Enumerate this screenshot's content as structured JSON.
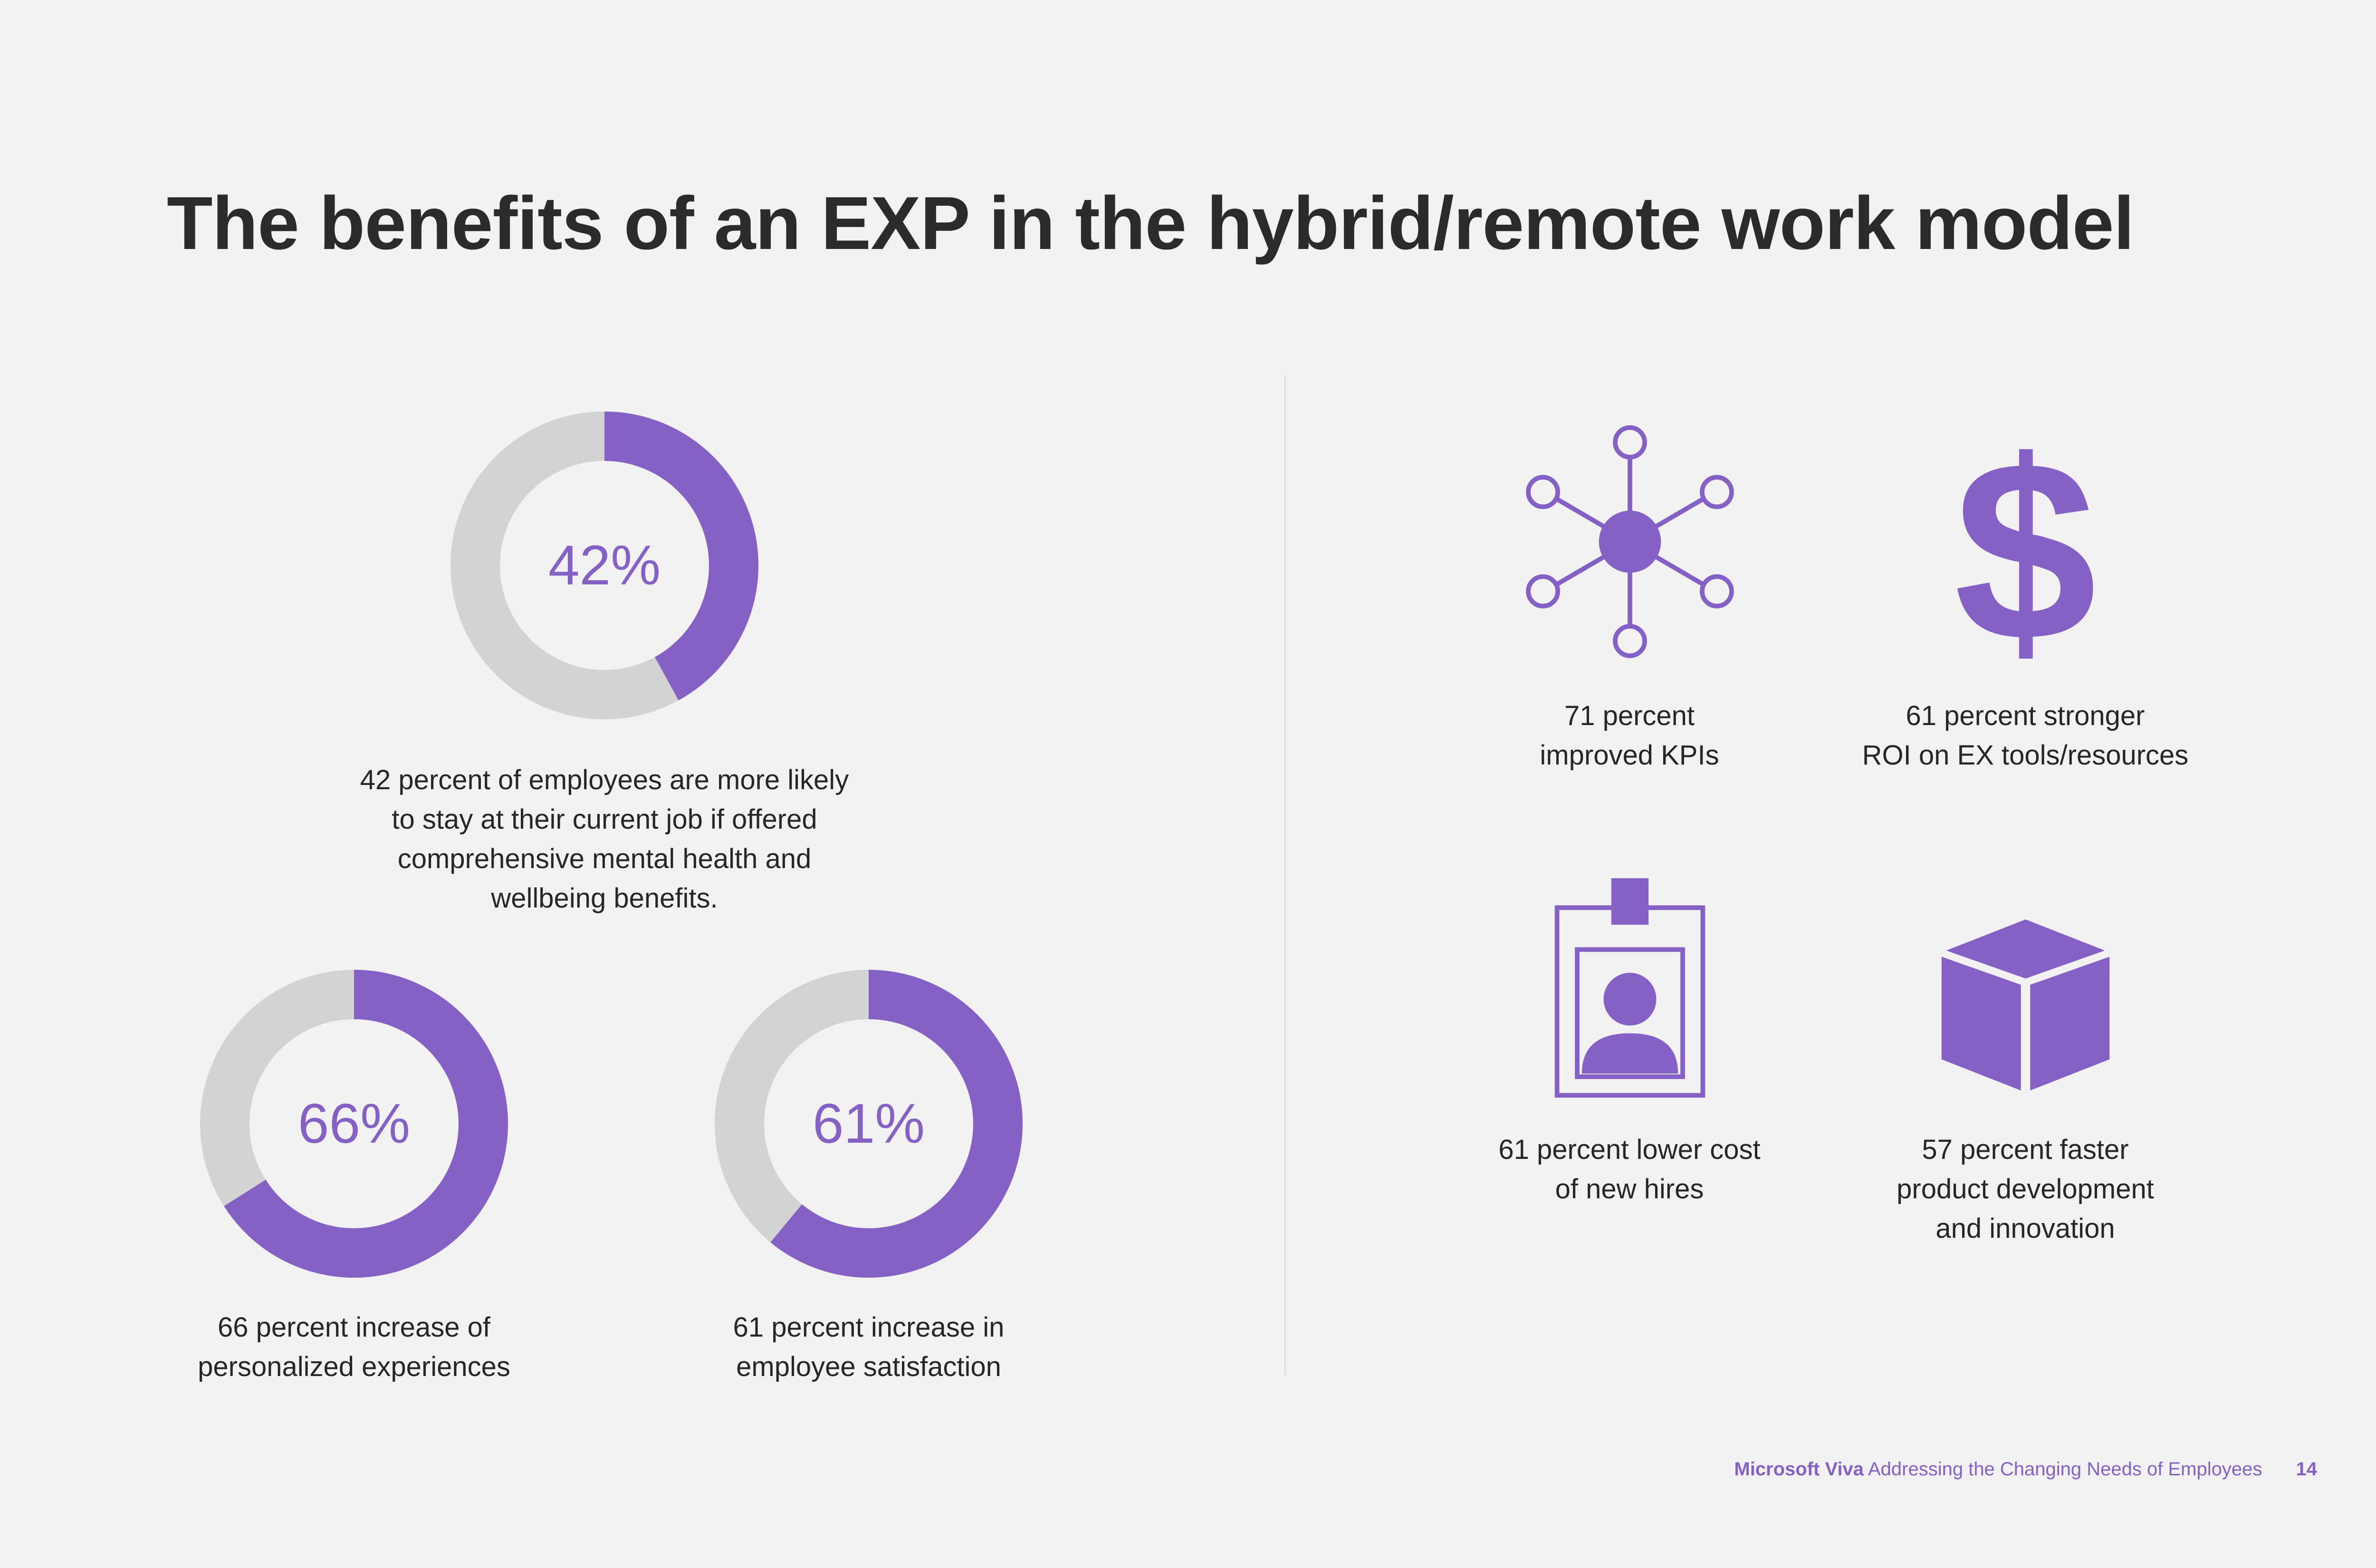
{
  "title": "The benefits of an EXP in the hybrid/remote work model",
  "colors": {
    "accent": "#8661c5",
    "track": "#d3d3d3",
    "background": "#f2f2f2"
  },
  "chart_data": [
    {
      "type": "pie",
      "variant": "donut",
      "value": 42,
      "label": "42%",
      "caption": [
        "42 percent of employees are more likely",
        "to stay at their current job if offered",
        "comprehensive mental health and",
        "wellbeing benefits."
      ]
    },
    {
      "type": "pie",
      "variant": "donut",
      "value": 66,
      "label": "66%",
      "caption": [
        "66 percent increase of",
        "personalized experiences"
      ]
    },
    {
      "type": "pie",
      "variant": "donut",
      "value": 61,
      "label": "61%",
      "caption": [
        "61 percent increase in",
        "employee satisfaction"
      ]
    }
  ],
  "stats": [
    {
      "icon": "network-icon",
      "caption": [
        "71 percent",
        "improved KPIs"
      ]
    },
    {
      "icon": "dollar-icon",
      "symbol": "$",
      "caption": [
        "61 percent stronger",
        "ROI on EX tools/resources"
      ]
    },
    {
      "icon": "id-badge-icon",
      "caption": [
        "61 percent lower cost",
        "of new hires"
      ]
    },
    {
      "icon": "cube-icon",
      "caption": [
        "57 percent faster",
        "product development",
        "and innovation"
      ]
    }
  ],
  "footer": {
    "brand": "Microsoft Viva",
    "doc_title": "Addressing the Changing Needs of Employees",
    "page": "14"
  }
}
